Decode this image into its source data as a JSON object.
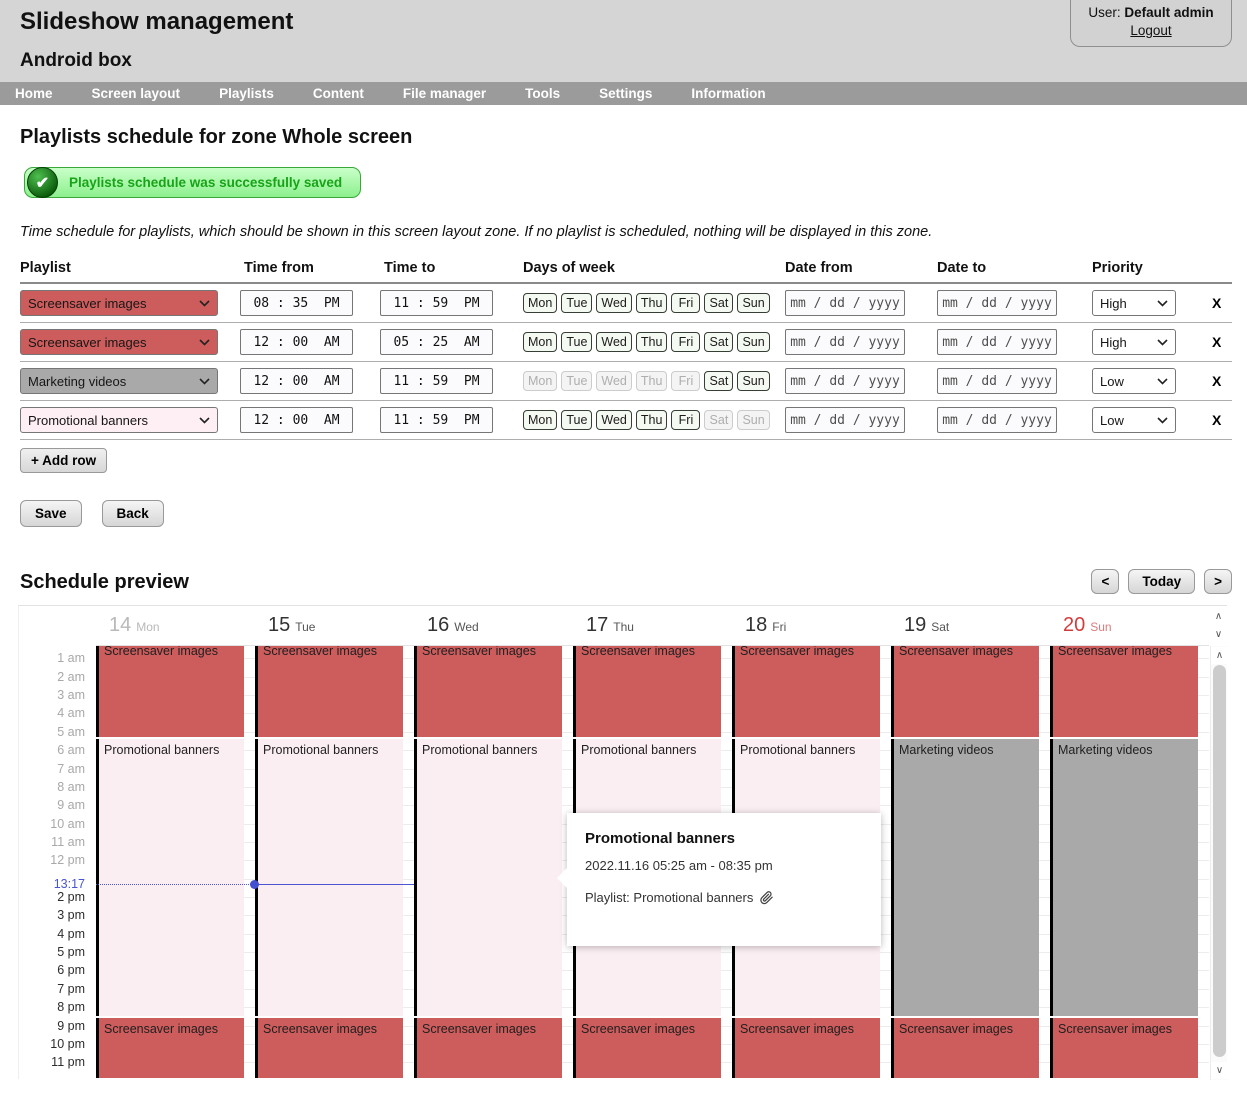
{
  "header": {
    "title": "Slideshow management",
    "subtitle": "Android box",
    "user_label": "User:",
    "user_name": "Default admin",
    "logout_label": "Logout"
  },
  "nav": {
    "items": [
      "Home",
      "Screen layout",
      "Playlists",
      "Content",
      "File manager",
      "Tools",
      "Settings",
      "Information"
    ]
  },
  "page": {
    "title": "Playlists schedule for zone Whole screen",
    "success_message": "Playlists schedule was successfully saved",
    "success_check": "✔",
    "description": "Time schedule for playlists, which should be shown in this screen layout zone. If no playlist is scheduled, nothing will be displayed in this zone."
  },
  "schedule_table": {
    "headers": [
      "Playlist",
      "Time from",
      "Time to",
      "Days of week",
      "Date from",
      "Date to",
      "Priority"
    ],
    "day_names": [
      "Mon",
      "Tue",
      "Wed",
      "Thu",
      "Fri",
      "Sat",
      "Sun"
    ],
    "date_placeholder": "mm / dd / yyyy",
    "delete_label": "X",
    "add_row_label": "+ Add row",
    "rows": [
      {
        "playlist": "Screensaver images",
        "playlist_color": "#cd5c5c",
        "time_from": "08 : 35  PM",
        "time_to": "11 : 59  PM",
        "days_enabled": [
          true,
          true,
          true,
          true,
          true,
          true,
          true
        ],
        "date_from": "",
        "date_to": "",
        "priority": "High"
      },
      {
        "playlist": "Screensaver images",
        "playlist_color": "#cd5c5c",
        "time_from": "12 : 00  AM",
        "time_to": "05 : 25  AM",
        "days_enabled": [
          true,
          true,
          true,
          true,
          true,
          true,
          true
        ],
        "date_from": "",
        "date_to": "",
        "priority": "High"
      },
      {
        "playlist": "Marketing videos",
        "playlist_color": "#a9a9a9",
        "time_from": "12 : 00  AM",
        "time_to": "11 : 59  PM",
        "days_enabled": [
          false,
          false,
          false,
          false,
          false,
          true,
          true
        ],
        "date_from": "",
        "date_to": "",
        "priority": "Low"
      },
      {
        "playlist": "Promotional banners",
        "playlist_color": "#fdeff4",
        "time_from": "12 : 00  AM",
        "time_to": "11 : 59  PM",
        "days_enabled": [
          true,
          true,
          true,
          true,
          true,
          false,
          false
        ],
        "date_from": "",
        "date_to": "",
        "priority": "Low"
      }
    ]
  },
  "actions": {
    "save_label": "Save",
    "back_label": "Back"
  },
  "preview": {
    "title": "Schedule preview",
    "nav": {
      "prev": "<",
      "today": "Today",
      "next": ">"
    },
    "days": [
      {
        "number": "14",
        "name": "Mon",
        "state": "past"
      },
      {
        "number": "15",
        "name": "Tue",
        "state": "normal"
      },
      {
        "number": "16",
        "name": "Wed",
        "state": "normal"
      },
      {
        "number": "17",
        "name": "Thu",
        "state": "normal"
      },
      {
        "number": "18",
        "name": "Fri",
        "state": "normal"
      },
      {
        "number": "19",
        "name": "Sat",
        "state": "normal"
      },
      {
        "number": "20",
        "name": "Sun",
        "state": "holiday"
      }
    ],
    "time_labels": [
      {
        "label": "1 am",
        "hour": 1,
        "state": "past"
      },
      {
        "label": "2 am",
        "hour": 2,
        "state": "past"
      },
      {
        "label": "3 am",
        "hour": 3,
        "state": "past"
      },
      {
        "label": "4 am",
        "hour": 4,
        "state": "past"
      },
      {
        "label": "5 am",
        "hour": 5,
        "state": "past"
      },
      {
        "label": "6 am",
        "hour": 6,
        "state": "past"
      },
      {
        "label": "7 am",
        "hour": 7,
        "state": "past"
      },
      {
        "label": "8 am",
        "hour": 8,
        "state": "past"
      },
      {
        "label": "9 am",
        "hour": 9,
        "state": "past"
      },
      {
        "label": "10 am",
        "hour": 10,
        "state": "past"
      },
      {
        "label": "11 am",
        "hour": 11,
        "state": "past"
      },
      {
        "label": "12 pm",
        "hour": 12,
        "state": "past"
      },
      {
        "label": "2 pm",
        "hour": 14,
        "state": "future"
      },
      {
        "label": "3 pm",
        "hour": 15,
        "state": "future"
      },
      {
        "label": "4 pm",
        "hour": 16,
        "state": "future"
      },
      {
        "label": "5 pm",
        "hour": 17,
        "state": "future"
      },
      {
        "label": "6 pm",
        "hour": 18,
        "state": "future"
      },
      {
        "label": "7 pm",
        "hour": 19,
        "state": "future"
      },
      {
        "label": "8 pm",
        "hour": 20,
        "state": "future"
      },
      {
        "label": "9 pm",
        "hour": 21,
        "state": "future"
      },
      {
        "label": "10 pm",
        "hour": 22,
        "state": "future"
      },
      {
        "label": "11 pm",
        "hour": 23,
        "state": "future"
      }
    ],
    "current_time": {
      "label": "13:17",
      "hour": 13.2833
    },
    "palette": {
      "red": "#cd5c5c",
      "pink": "#fbeef3",
      "gray": "#a9a9a9"
    },
    "columns": [
      {
        "day": "Mon",
        "events": [
          {
            "label": "Screensaver images",
            "start": 0,
            "end": 5.4167,
            "color": "red"
          },
          {
            "label": "Promotional banners",
            "start": 5.4167,
            "end": 20.5833,
            "color": "pink"
          },
          {
            "label": "Screensaver images",
            "start": 20.5833,
            "end": 23.9833,
            "color": "red"
          }
        ]
      },
      {
        "day": "Tue",
        "events": [
          {
            "label": "Screensaver images",
            "start": 0,
            "end": 5.4167,
            "color": "red"
          },
          {
            "label": "Promotional banners",
            "start": 5.4167,
            "end": 20.5833,
            "color": "pink"
          },
          {
            "label": "Screensaver images",
            "start": 20.5833,
            "end": 23.9833,
            "color": "red"
          }
        ]
      },
      {
        "day": "Wed",
        "events": [
          {
            "label": "Screensaver images",
            "start": 0,
            "end": 5.4167,
            "color": "red"
          },
          {
            "label": "Promotional banners",
            "start": 5.4167,
            "end": 20.5833,
            "color": "pink"
          },
          {
            "label": "Screensaver images",
            "start": 20.5833,
            "end": 23.9833,
            "color": "red"
          }
        ]
      },
      {
        "day": "Thu",
        "events": [
          {
            "label": "Screensaver images",
            "start": 0,
            "end": 5.4167,
            "color": "red"
          },
          {
            "label": "Promotional banners",
            "start": 5.4167,
            "end": 20.5833,
            "color": "pink"
          },
          {
            "label": "Screensaver images",
            "start": 20.5833,
            "end": 23.9833,
            "color": "red"
          }
        ]
      },
      {
        "day": "Fri",
        "events": [
          {
            "label": "Screensaver images",
            "start": 0,
            "end": 5.4167,
            "color": "red"
          },
          {
            "label": "Promotional banners",
            "start": 5.4167,
            "end": 20.5833,
            "color": "pink"
          },
          {
            "label": "Screensaver images",
            "start": 20.5833,
            "end": 23.9833,
            "color": "red"
          }
        ]
      },
      {
        "day": "Sat",
        "events": [
          {
            "label": "Screensaver images",
            "start": 0,
            "end": 5.4167,
            "color": "red"
          },
          {
            "label": "Marketing videos",
            "start": 5.4167,
            "end": 20.5833,
            "color": "gray"
          },
          {
            "label": "Screensaver images",
            "start": 20.5833,
            "end": 23.9833,
            "color": "red"
          }
        ]
      },
      {
        "day": "Sun",
        "events": [
          {
            "label": "Screensaver images",
            "start": 0,
            "end": 5.4167,
            "color": "red"
          },
          {
            "label": "Marketing videos",
            "start": 5.4167,
            "end": 20.5833,
            "color": "gray"
          },
          {
            "label": "Screensaver images",
            "start": 20.5833,
            "end": 23.9833,
            "color": "red"
          }
        ]
      }
    ],
    "tooltip": {
      "title": "Promotional banners",
      "time": "2022.11.16 05:25 am - 08:35 pm",
      "playlist_line": "Playlist: Promotional banners"
    }
  }
}
